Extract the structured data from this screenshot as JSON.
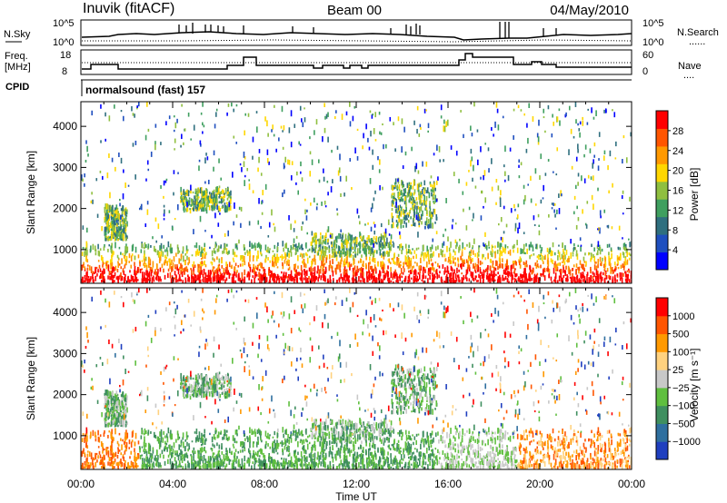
{
  "header": {
    "station": "Inuvik (fitACF)",
    "beam": "Beam 00",
    "date": "04/May/2010"
  },
  "status": {
    "left_top_label": "N.Sky",
    "left_top_ticks": [
      "10^5",
      "10^0"
    ],
    "right_top_label": "N.Search",
    "right_top_ticks": [
      "10^5",
      "10^0"
    ],
    "left_mid_label_1": "Freq.",
    "left_mid_label_2": "[MHz]",
    "left_mid_ticks": [
      "18",
      "8"
    ],
    "right_mid_label": "Nave",
    "right_mid_ticks": [
      "60",
      "0"
    ],
    "cpid_label": "CPID",
    "cpid_text": "normalsound (fast) 157"
  },
  "chart_data": [
    {
      "type": "heatmap",
      "ylabel": "Slant Range [km]",
      "xlabel": "Time UT",
      "ylim": [
        180,
        4600
      ],
      "xlim": [
        0,
        24
      ],
      "yticks": [
        "1000",
        "2000",
        "3000",
        "4000"
      ],
      "xticks": [
        "00:00",
        "04:00",
        "08:00",
        "12:00",
        "16:00",
        "20:00",
        "00:00"
      ],
      "colorbar": {
        "label": "Power [dB]",
        "ticks": [
          "28",
          "24",
          "20",
          "16",
          "12",
          "8",
          "4"
        ],
        "range": [
          0,
          30
        ],
        "colors": [
          "#0000ff",
          "#1f4fbf",
          "#2f6f7f",
          "#3f9f5f",
          "#8fbf3f",
          "#ffd700",
          "#ff9900",
          "#ff5500",
          "#ff0000"
        ]
      }
    },
    {
      "type": "heatmap",
      "ylabel": "Slant Range [km]",
      "xlabel": "Time UT",
      "ylim": [
        180,
        4600
      ],
      "xlim": [
        0,
        24
      ],
      "yticks": [
        "1000",
        "2000",
        "3000",
        "4000"
      ],
      "xticks": [
        "00:00",
        "04:00",
        "08:00",
        "12:00",
        "16:00",
        "20:00",
        "00:00"
      ],
      "colorbar": {
        "label": "Velocity [m s⁻¹]",
        "ticks": [
          "1000",
          "500",
          "100",
          "25",
          "−25",
          "−100",
          "−500",
          "−1000"
        ],
        "colors": [
          "#1f3fbf",
          "#2f6f9f",
          "#3f8f5f",
          "#5fbf3f",
          "#c8c8c8",
          "#ffd27f",
          "#ff9900",
          "#ff5500",
          "#ff0000"
        ]
      }
    }
  ]
}
